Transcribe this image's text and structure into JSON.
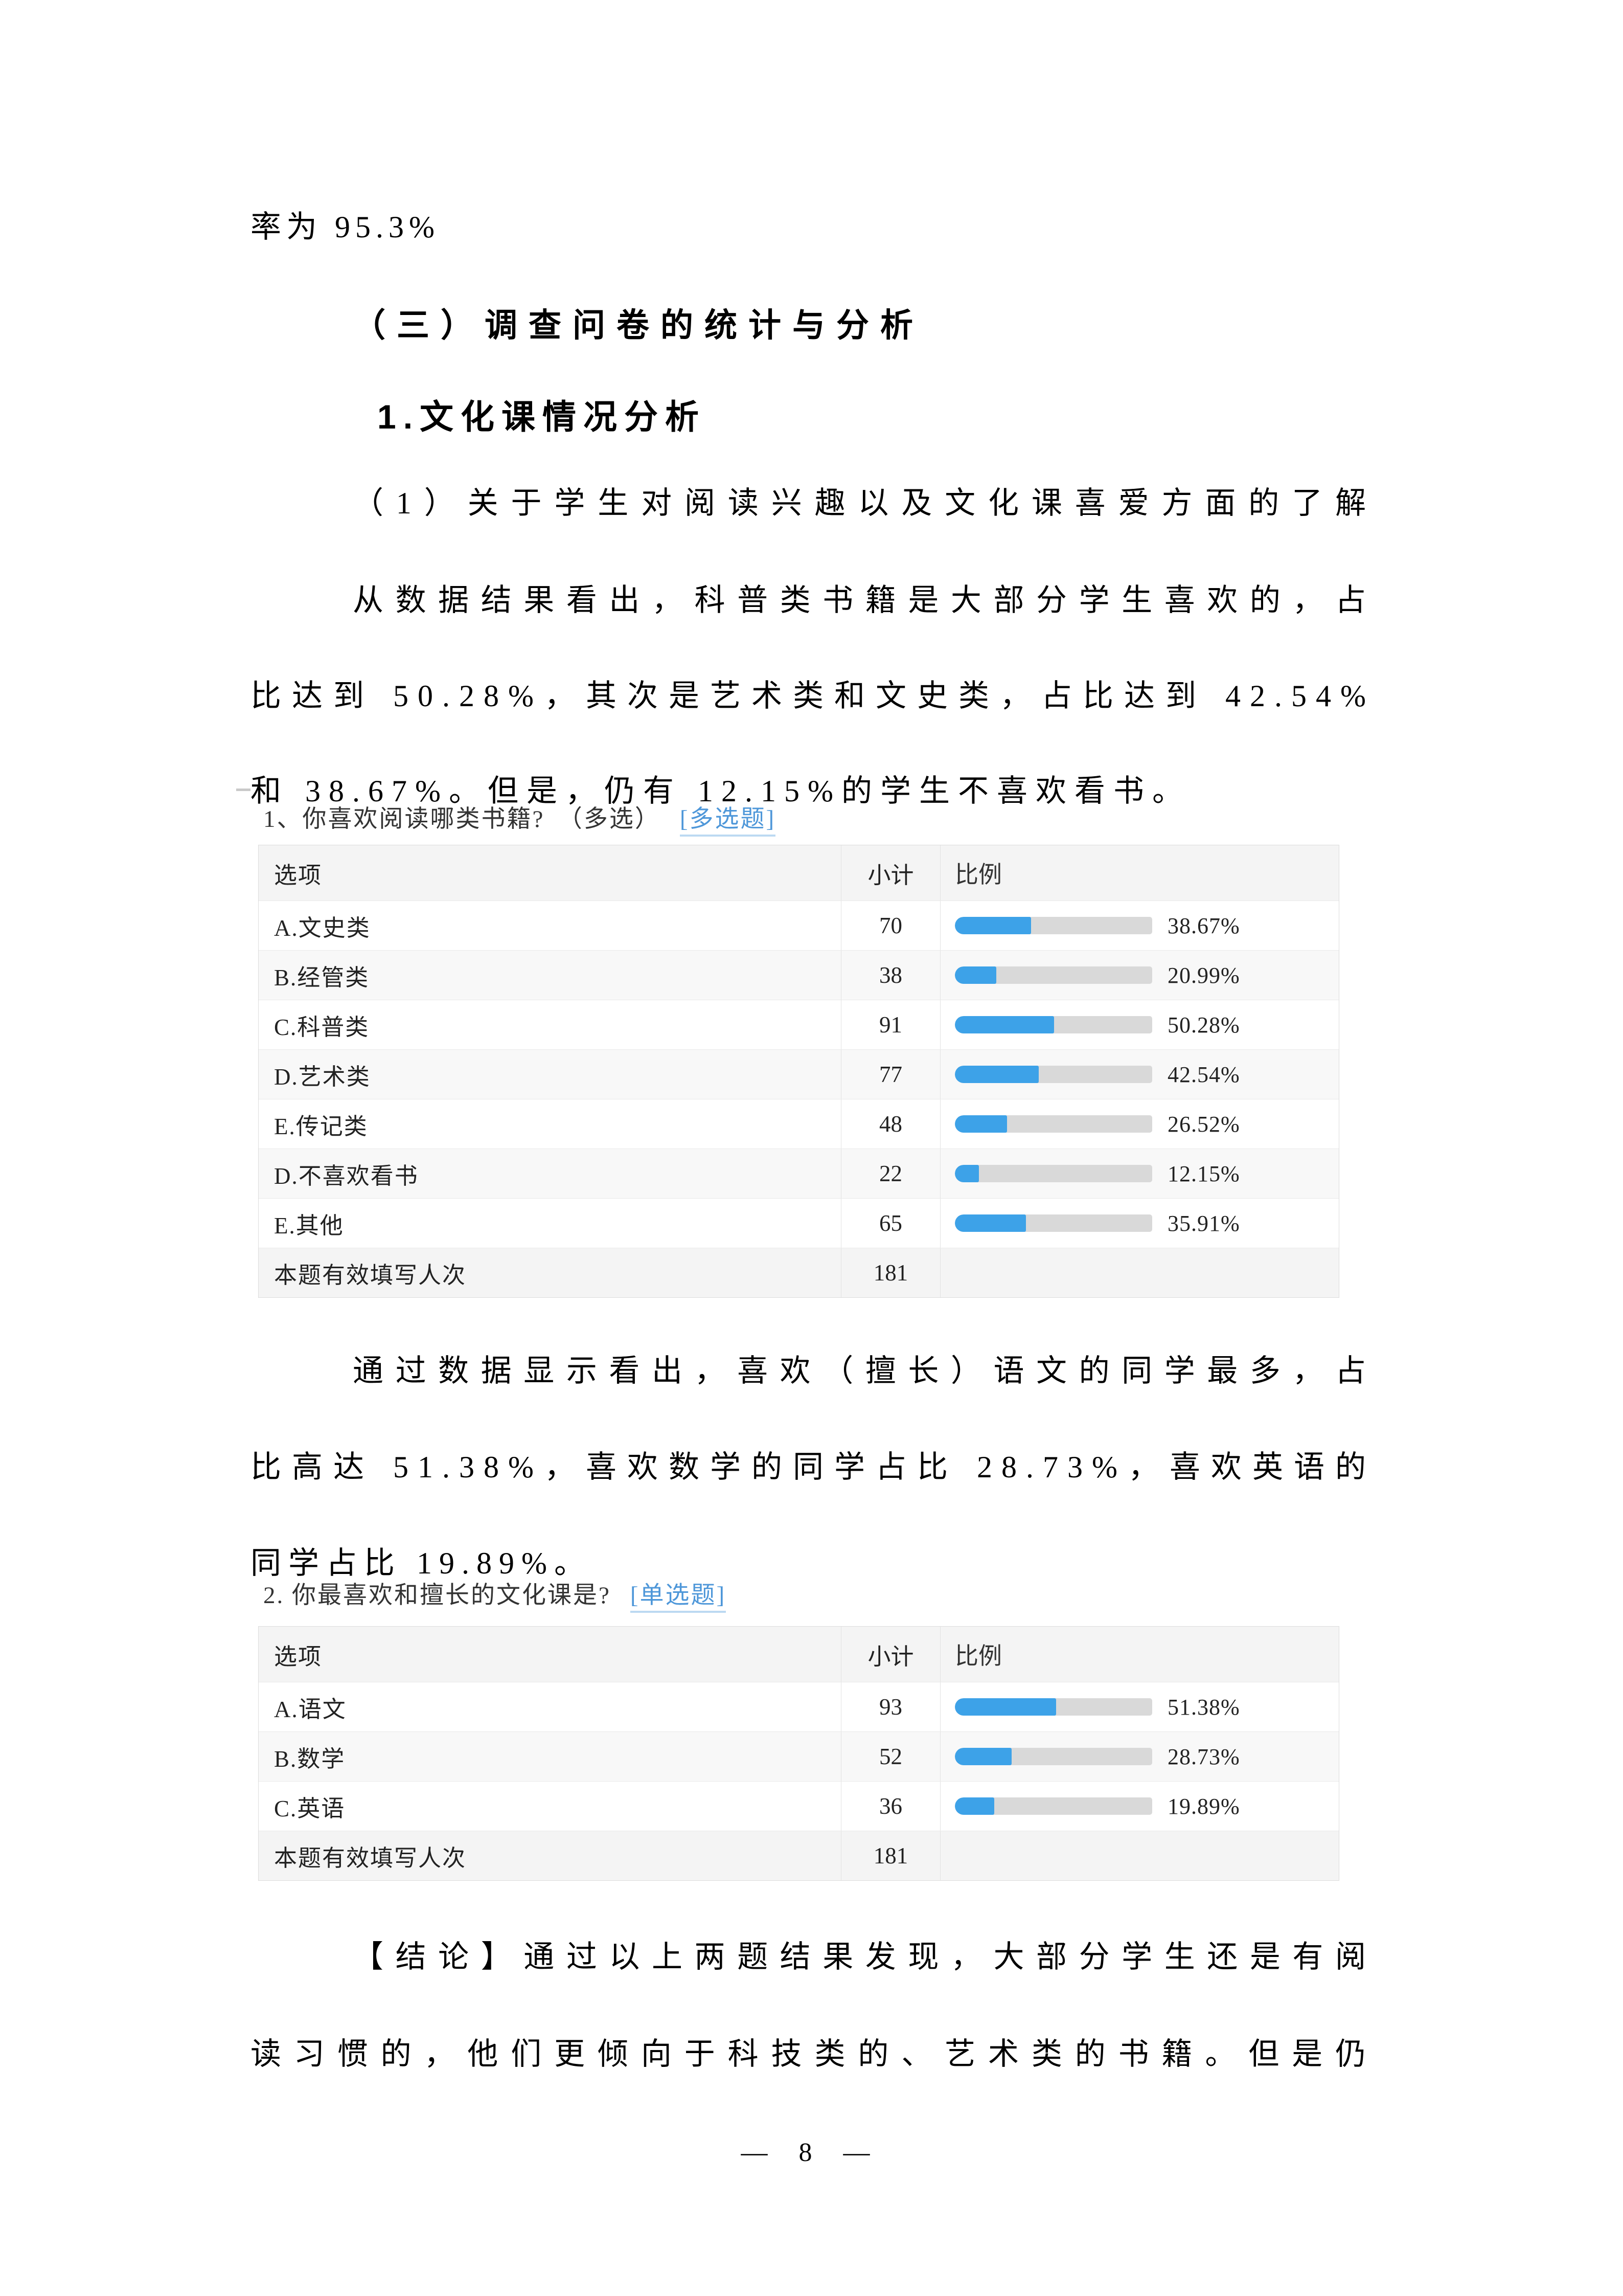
{
  "colors": {
    "bar_fill": "#3da2e8",
    "bar_track": "#d9d9d9",
    "link_blue": "#4e97d9"
  },
  "content": {
    "line_rate": "率为 95.3%",
    "heading_section": "（三）调查问卷的统计与分析",
    "heading_sub": "1.文化课情况分析",
    "para_intro_line1": "（1）关于学生对阅读兴趣以及文化课喜爱方面的了解",
    "para_data_line1": "从数据结果看出，科普类书籍是大部分学生喜欢的，占",
    "para_data_line2": "比达到 50.28%，其次是艺术类和文史类，占比达到 42.54%",
    "para_data_line3": "和 38.67%。但是，仍有 12.15%的学生不喜欢看书。",
    "para_mid_line1": "通过数据显示看出，喜欢（擅长）语文的同学最多，占",
    "para_mid_line2": "比高达 51.38%，喜欢数学的同学占比 28.73%，喜欢英语的",
    "para_mid_line3": "同学占比 19.89%。",
    "para_concl_line1": "【结论】通过以上两题结果发现，大部分学生还是有阅",
    "para_concl_line2": "读习惯的，他们更倾向于科技类的、艺术类的书籍。但是仍",
    "page_number": "— 8 —"
  },
  "table1": {
    "title": "1、你喜欢阅读哪类书籍?　（多选）",
    "tag": "[多选题]",
    "headers": {
      "option": "选项",
      "count": "小计",
      "ratio": "比例"
    },
    "rows": [
      {
        "label": "A.文史类",
        "count": "70",
        "percent": "38.67%",
        "value": 38.67
      },
      {
        "label": "B.经管类",
        "count": "38",
        "percent": "20.99%",
        "value": 20.99
      },
      {
        "label": "C.科普类",
        "count": "91",
        "percent": "50.28%",
        "value": 50.28
      },
      {
        "label": "D.艺术类",
        "count": "77",
        "percent": "42.54%",
        "value": 42.54
      },
      {
        "label": "E.传记类",
        "count": "48",
        "percent": "26.52%",
        "value": 26.52
      },
      {
        "label": "D.不喜欢看书",
        "count": "22",
        "percent": "12.15%",
        "value": 12.15
      },
      {
        "label": "E.其他",
        "count": "65",
        "percent": "35.91%",
        "value": 35.91
      }
    ],
    "footer": {
      "label": "本题有效填写人次",
      "count": "181"
    }
  },
  "table2": {
    "title": "2. 你最喜欢和擅长的文化课是?",
    "tag": "[单选题]",
    "headers": {
      "option": "选项",
      "count": "小计",
      "ratio": "比例"
    },
    "rows": [
      {
        "label": "A.语文",
        "count": "93",
        "percent": "51.38%",
        "value": 51.38
      },
      {
        "label": "B.数学",
        "count": "52",
        "percent": "28.73%",
        "value": 28.73
      },
      {
        "label": "C.英语",
        "count": "36",
        "percent": "19.89%",
        "value": 19.89
      }
    ],
    "footer": {
      "label": "本题有效填写人次",
      "count": "181"
    }
  }
}
